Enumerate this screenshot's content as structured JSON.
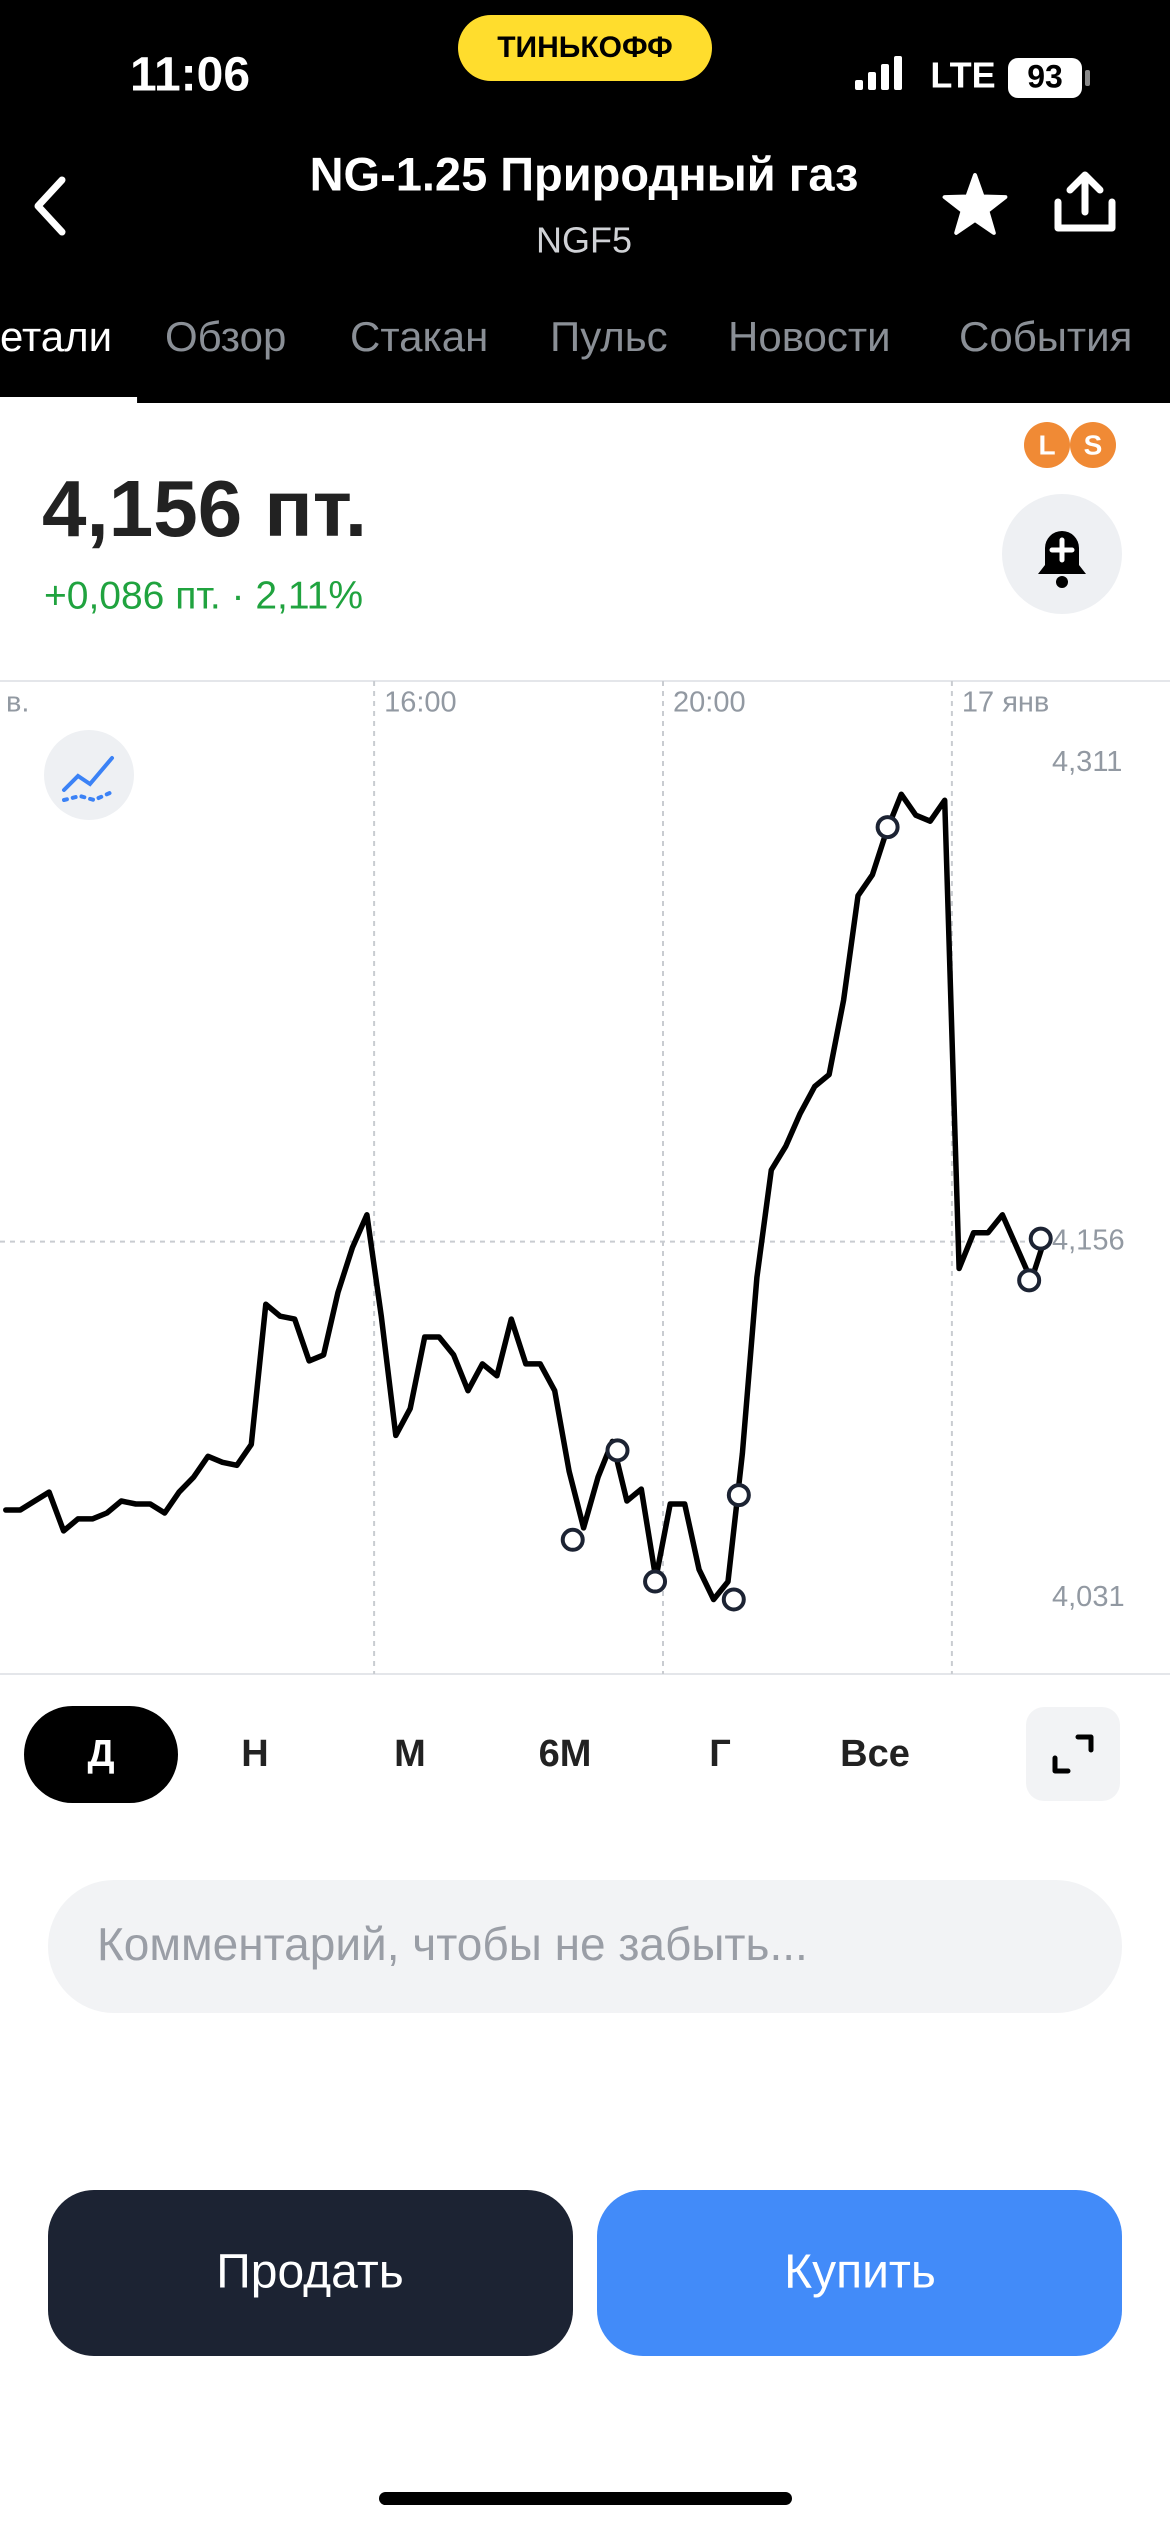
{
  "status_bar": {
    "time": "11:06",
    "carrier": "ТИНЬКОФФ",
    "network": "LTE",
    "battery": "93"
  },
  "header": {
    "title": "NG-1.25 Природный газ",
    "ticker": "NGF5"
  },
  "tabs": [
    "етали",
    "Обзор",
    "Стакан",
    "Пульс",
    "Новости",
    "События"
  ],
  "active_tab": 0,
  "quote": {
    "price": "4,156 пт.",
    "change": "+0,086 пт. · 2,11%",
    "badges": [
      "L",
      "S"
    ]
  },
  "chart_data": {
    "type": "line",
    "color": "#000000",
    "x": [
      10.9,
      11.1,
      11.3,
      11.5,
      11.7,
      11.9,
      12.1,
      12.3,
      12.5,
      12.7,
      12.9,
      13.1,
      13.3,
      13.5,
      13.7,
      13.9,
      14.1,
      14.3,
      14.5,
      14.7,
      14.9,
      15.1,
      15.3,
      15.5,
      15.7,
      15.9,
      16.1,
      16.3,
      16.5,
      16.7,
      16.9,
      17.1,
      17.3,
      17.5,
      17.7,
      17.9,
      18.1,
      18.3,
      18.5,
      18.7,
      18.9,
      19.1,
      19.3,
      19.5,
      19.7,
      19.9,
      20.1,
      20.3,
      20.5,
      20.7,
      20.9,
      21.1,
      21.3,
      21.5,
      21.7,
      21.9,
      22.1,
      22.3,
      22.5,
      22.7,
      22.9,
      23.1,
      23.3,
      23.5,
      23.7,
      23.9,
      24.1,
      24.3,
      24.5,
      24.7,
      24.9,
      25.1,
      25.3
    ],
    "values": [
      4.066,
      4.066,
      4.069,
      4.072,
      4.059,
      4.063,
      4.063,
      4.065,
      4.069,
      4.068,
      4.068,
      4.065,
      4.072,
      4.077,
      4.084,
      4.082,
      4.081,
      4.088,
      4.135,
      4.131,
      4.13,
      4.116,
      4.118,
      4.139,
      4.154,
      4.165,
      4.131,
      4.091,
      4.1,
      4.124,
      4.124,
      4.118,
      4.106,
      4.115,
      4.111,
      4.13,
      4.115,
      4.115,
      4.106,
      4.079,
      4.06,
      4.077,
      4.089,
      4.069,
      4.073,
      4.043,
      4.068,
      4.068,
      4.046,
      4.036,
      4.042,
      4.085,
      4.144,
      4.18,
      4.188,
      4.199,
      4.208,
      4.212,
      4.237,
      4.272,
      4.279,
      4.294,
      4.306,
      4.299,
      4.297,
      4.304,
      4.147,
      4.159,
      4.159,
      4.165,
      4.154,
      4.143,
      4.158
    ],
    "markers": {
      "x": [
        18.75,
        19.37,
        19.89,
        20.98,
        21.05,
        23.11,
        25.07,
        25.23
      ],
      "values": [
        4.056,
        4.086,
        4.042,
        4.036,
        4.071,
        4.295,
        4.143,
        4.157
      ]
    },
    "xlim": [
      10.82,
      27.02
    ],
    "ylim": [
      4.011,
      4.344
    ],
    "xticks": [
      {
        "value": 10,
        "label": "в."
      },
      {
        "value": 16,
        "label": "16:00"
      },
      {
        "value": 20,
        "label": "20:00"
      },
      {
        "value": 24,
        "label": "17 янв"
      }
    ],
    "yticks": [
      {
        "value": 4.031,
        "label": "4,031"
      },
      {
        "value": 4.156,
        "label": "4,156"
      },
      {
        "value": 4.311,
        "label": "4,311"
      }
    ],
    "grid": true,
    "price_line_tick": 1
  },
  "periods": [
    "Д",
    "Н",
    "М",
    "6М",
    "Г",
    "Все"
  ],
  "active_period": 0,
  "comment_placeholder": "Комментарий, чтобы не забыть...",
  "actions": {
    "sell": "Продать",
    "buy": "Купить"
  }
}
